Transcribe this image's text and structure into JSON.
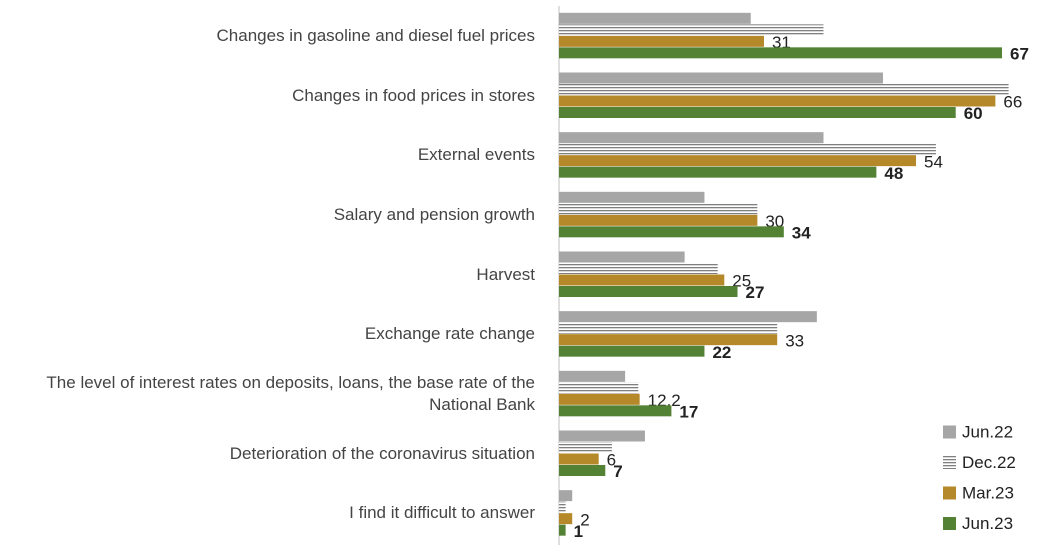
{
  "chart_data": {
    "type": "hbar",
    "categories": [
      "Changes in gasoline and diesel fuel prices",
      "Changes in food prices in stores",
      "External events",
      "Salary and pension growth",
      "Harvest",
      "Exchange rate change",
      "The level of interest rates on deposits, loans, the base rate of the National Bank",
      "Deterioration of the coronavirus situation",
      "I find it difficult to answer"
    ],
    "series": [
      {
        "name": "Jun.22",
        "color": "#a6a6a6",
        "values": [
          29,
          49,
          40,
          22,
          19,
          39,
          10,
          13,
          2
        ]
      },
      {
        "name": "Dec.22",
        "color": "#7f7f7f",
        "pattern": "horizontal-lines",
        "values": [
          40,
          68,
          57,
          30,
          24,
          33,
          12,
          8,
          1
        ]
      },
      {
        "name": "Mar.23",
        "color": "#b5892a",
        "data_labels": "normal",
        "values": [
          31,
          66,
          54,
          30,
          25,
          33,
          12.2,
          6,
          2
        ]
      },
      {
        "name": "Jun.23",
        "color": "#548235",
        "data_labels": "bold",
        "values": [
          67,
          60,
          48,
          34,
          27,
          22,
          17,
          7,
          1
        ]
      }
    ],
    "xlim": [
      0,
      67
    ],
    "legend": "lower right"
  }
}
